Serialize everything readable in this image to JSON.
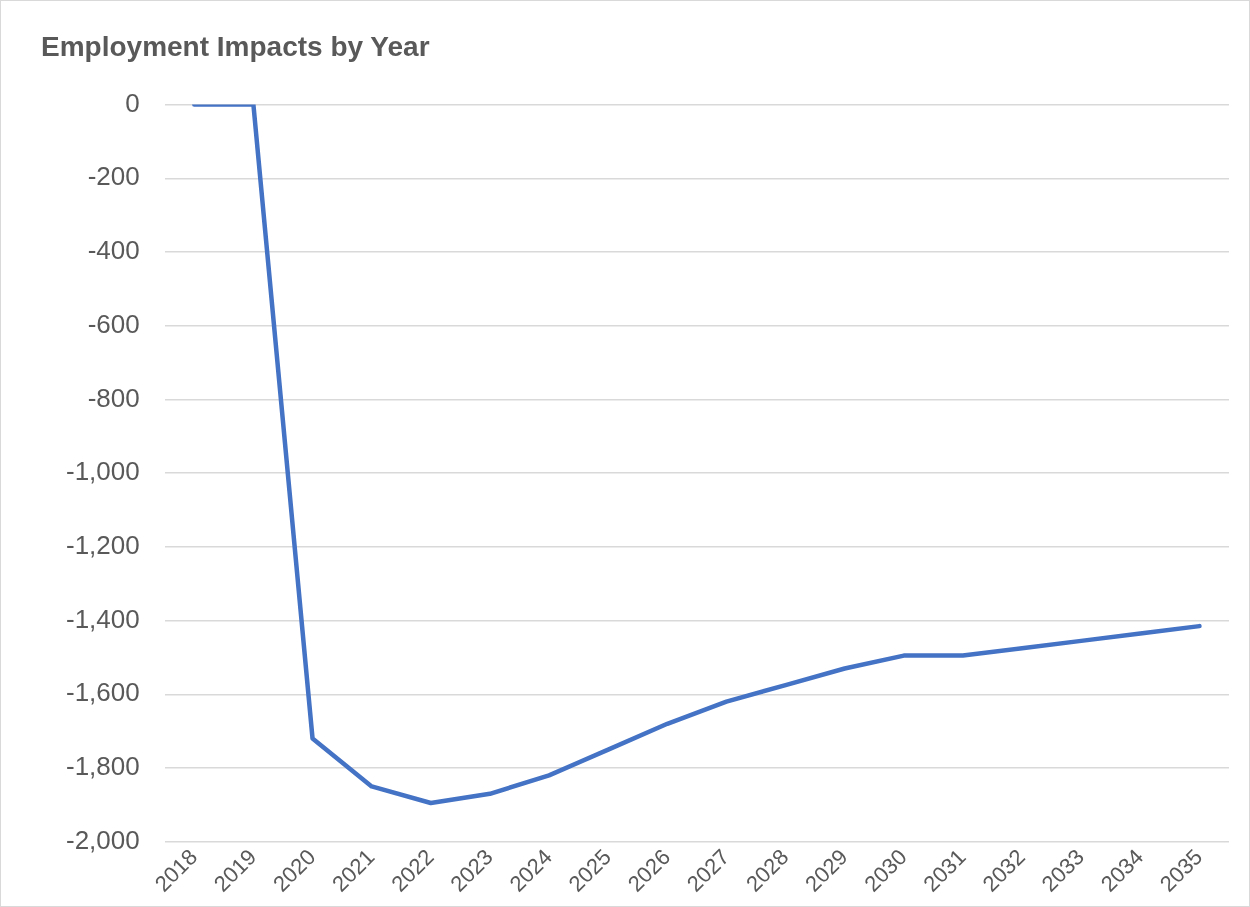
{
  "chart_data": {
    "type": "line",
    "title": "Employment Impacts by Year",
    "categories": [
      "2018",
      "2019",
      "2020",
      "2021",
      "2022",
      "2023",
      "2024",
      "2025",
      "2026",
      "2027",
      "2028",
      "2029",
      "2030",
      "2031",
      "2032",
      "2033",
      "2034",
      "2035"
    ],
    "series": [
      {
        "color": "#4472c4",
        "values": [
          0,
          0,
          -1720,
          -1850,
          -1895,
          -1870,
          -1820,
          -1750,
          -1680,
          -1620,
          -1575,
          -1530,
          -1495,
          -1495,
          -1475,
          -1455,
          -1435,
          -1415
        ]
      }
    ],
    "ylim": [
      -2000,
      0
    ],
    "yticks": [
      {
        "value": -2000,
        "label": "-2,000"
      },
      {
        "value": -1800,
        "label": "-1,800"
      },
      {
        "value": -1600,
        "label": "-1,600"
      },
      {
        "value": -1400,
        "label": "-1,400"
      },
      {
        "value": -1200,
        "label": "-1,200"
      },
      {
        "value": -1000,
        "label": "-1,000"
      },
      -800,
      -600,
      -400,
      -200,
      0
    ],
    "grid": "y",
    "legend": false,
    "marker": "none",
    "line_style": "solid"
  }
}
